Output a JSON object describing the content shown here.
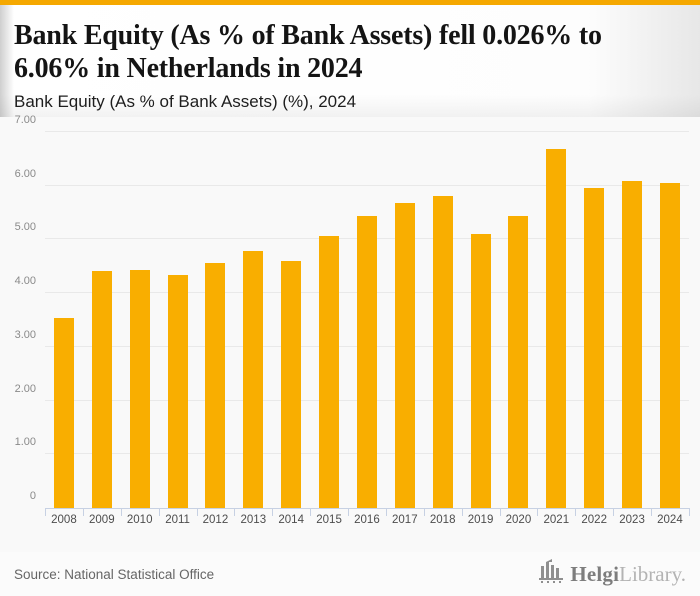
{
  "header": {
    "title": "Bank Equity (As % of Bank Assets) fell 0.026% to 6.06% in Netherlands in 2024",
    "subtitle": "Bank Equity (As % of Bank Assets) (%), 2024"
  },
  "chart_data": {
    "type": "bar",
    "title": "Bank Equity (As % of Bank Assets) fell 0.026% to 6.06% in Netherlands in 2024",
    "subtitle": "Bank Equity (As % of Bank Assets) (%), 2024",
    "categories": [
      "2008",
      "2009",
      "2010",
      "2011",
      "2012",
      "2013",
      "2014",
      "2015",
      "2016",
      "2017",
      "2018",
      "2019",
      "2020",
      "2021",
      "2022",
      "2023",
      "2024"
    ],
    "values": [
      3.53,
      4.42,
      4.44,
      4.33,
      4.57,
      4.78,
      4.59,
      5.06,
      5.44,
      5.68,
      5.81,
      5.11,
      5.44,
      6.68,
      5.96,
      6.09,
      6.06
    ],
    "xlabel": "",
    "ylabel": "",
    "ylim": [
      0,
      7
    ],
    "ytick_values": [
      0,
      1,
      2,
      3,
      4,
      5,
      6,
      7
    ],
    "ytick_labels": [
      "0",
      "1.00",
      "2.00",
      "3.00",
      "4.00",
      "5.00",
      "6.00",
      "7.00"
    ],
    "grid": true,
    "legend": false,
    "bar_color": "#f9ae00"
  },
  "footer": {
    "source": "Source: National Statistical Office",
    "brand_primary": "Helgi",
    "brand_secondary": "Library."
  },
  "colors": {
    "accent": "#f5a800",
    "bar": "#f9ae00",
    "axis": "#c7d1e3",
    "gridline": "#e9e9e9",
    "chart_bg": "#f9f9f9"
  }
}
